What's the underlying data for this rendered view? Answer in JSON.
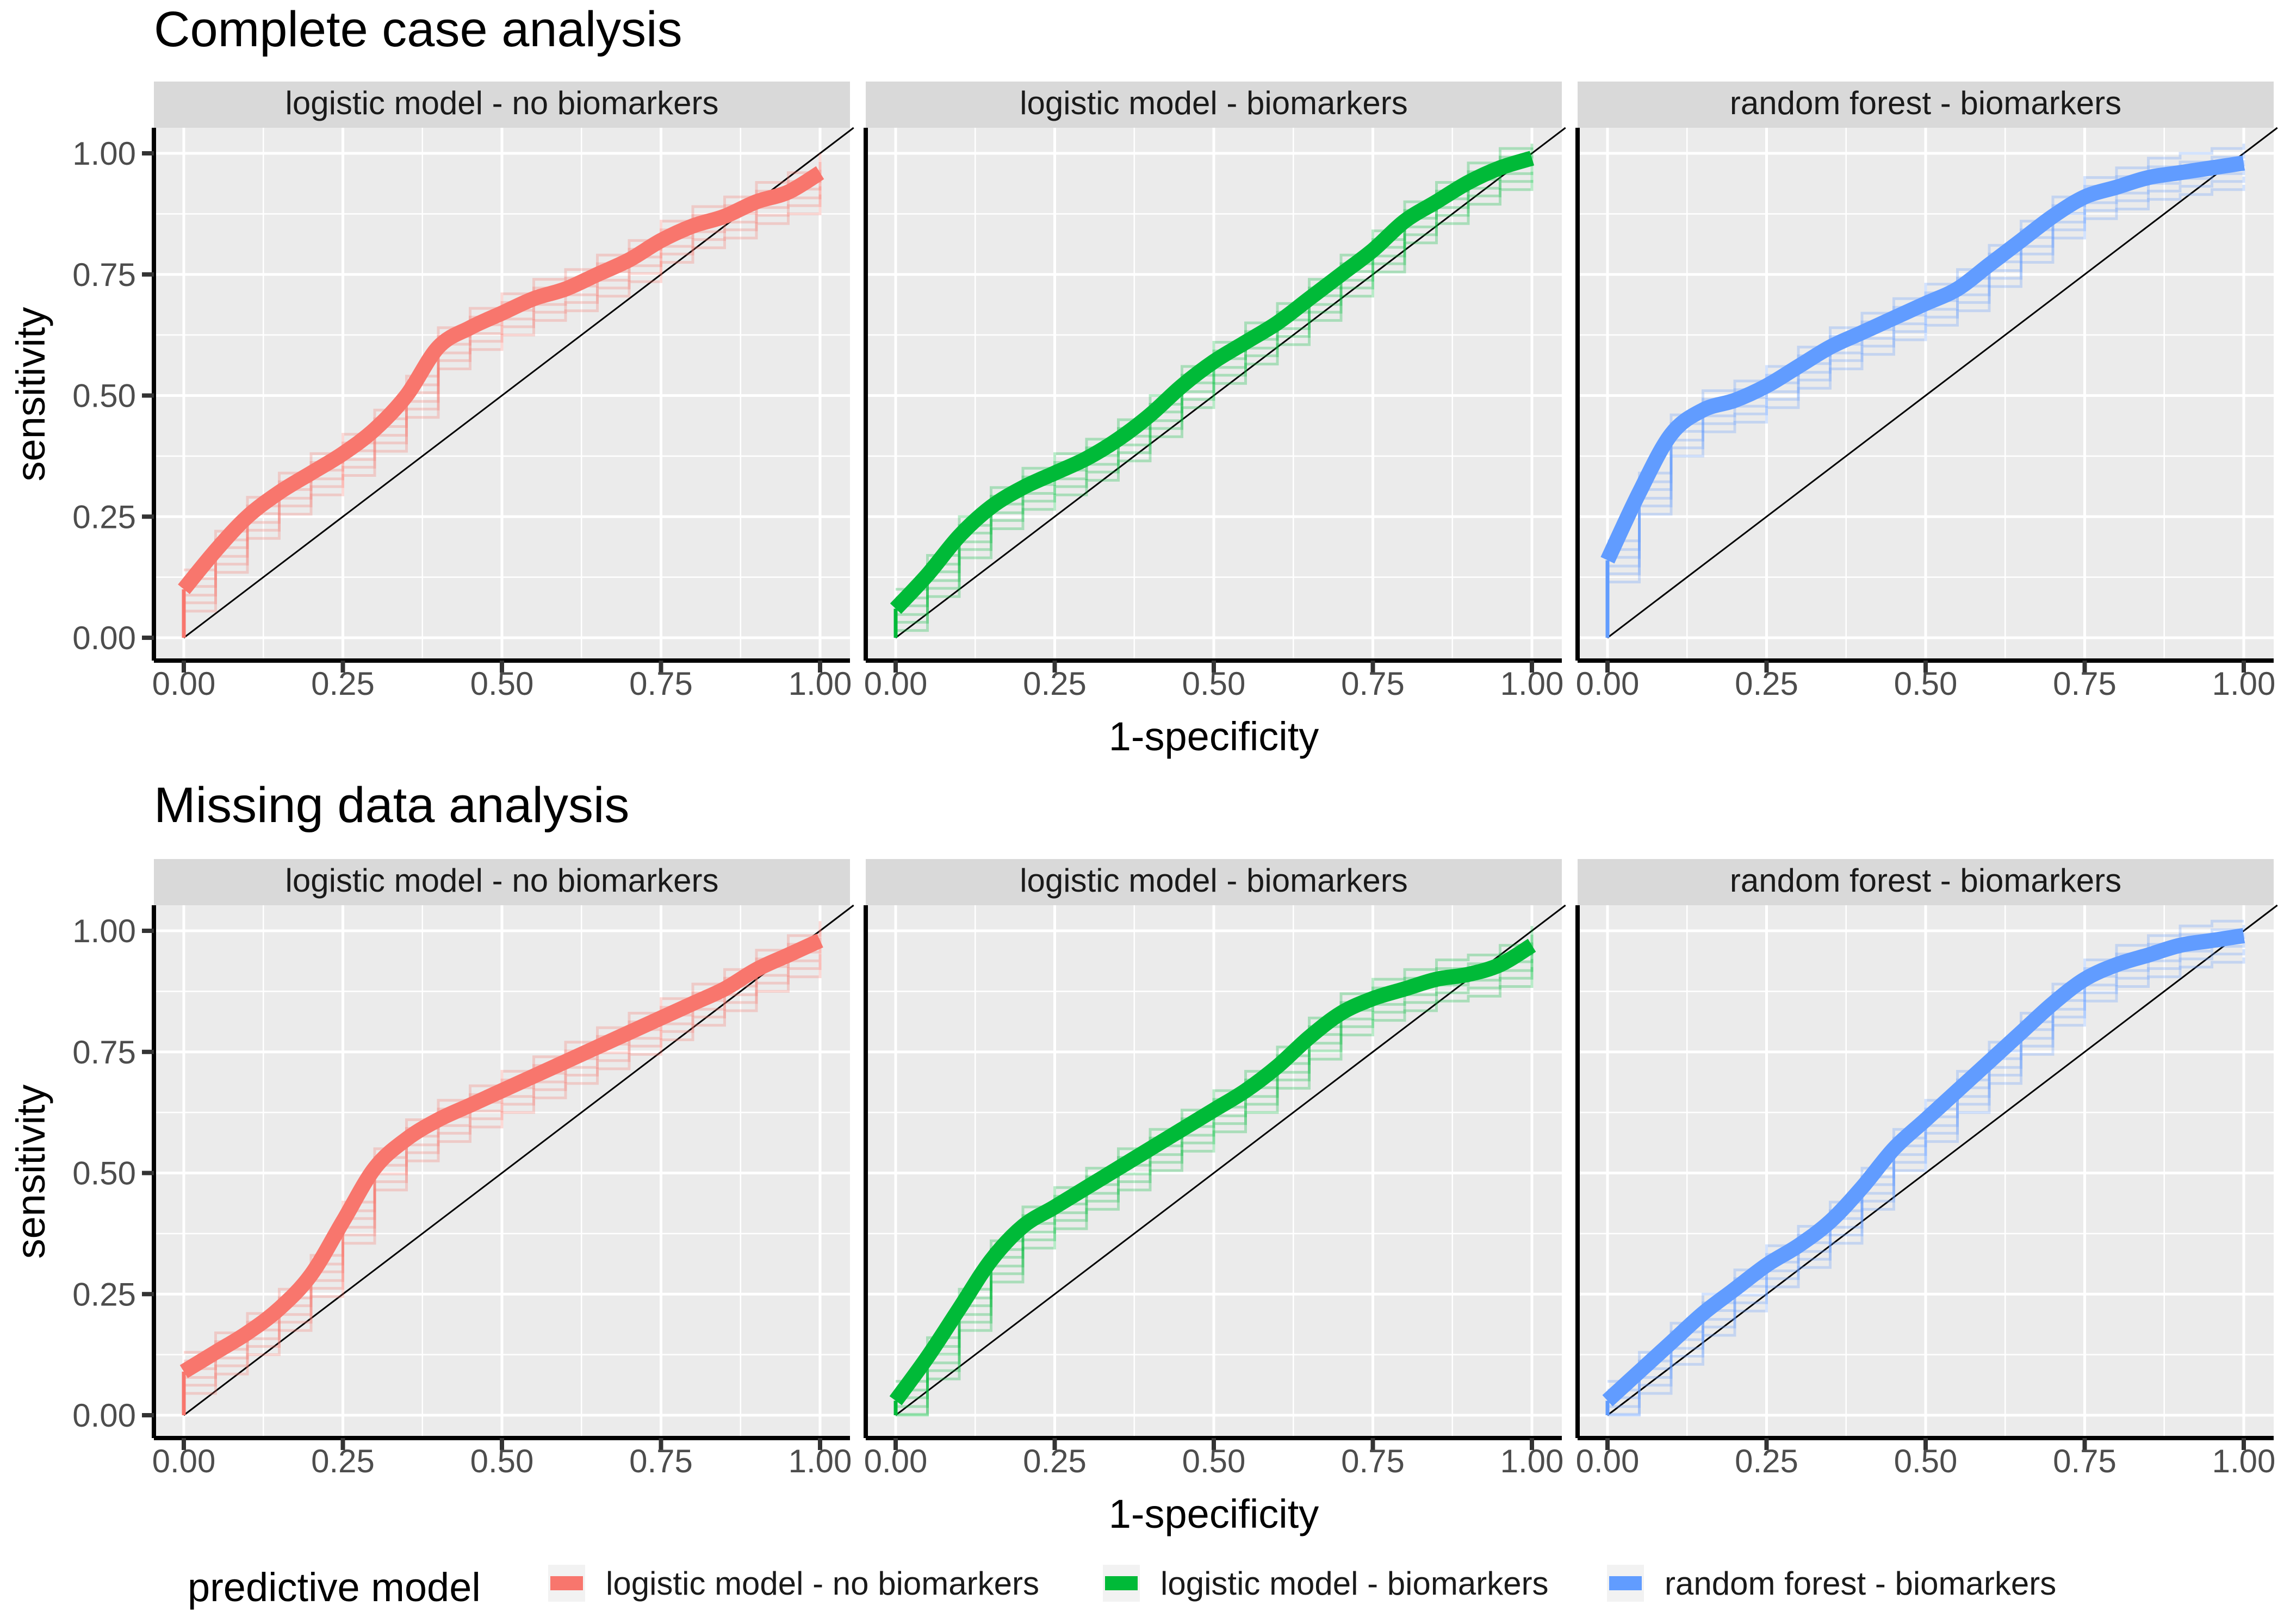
{
  "chart_data": [
    {
      "type": "line",
      "title": "Complete case analysis",
      "xlabel": "1-specificity",
      "ylabel": "sensitivity",
      "xlim": [
        0,
        1
      ],
      "ylim": [
        0,
        1
      ],
      "x_ticks": [
        "0.00",
        "0.25",
        "0.50",
        "0.75",
        "1.00"
      ],
      "y_ticks": [
        "0.00",
        "0.25",
        "0.50",
        "0.75",
        "1.00"
      ],
      "grid": true,
      "reference_line": "diagonal",
      "panels": [
        {
          "strip": "logistic model - no biomarkers",
          "color": "#F8766D",
          "series": [
            {
              "x": [
                0,
                0,
                0.05,
                0.1,
                0.15,
                0.2,
                0.25,
                0.3,
                0.35,
                0.4,
                0.45,
                0.5,
                0.55,
                0.6,
                0.65,
                0.7,
                0.75,
                0.8,
                0.85,
                0.9,
                0.95,
                1.0
              ],
              "y": [
                0,
                0.1,
                0.18,
                0.25,
                0.3,
                0.34,
                0.38,
                0.43,
                0.5,
                0.6,
                0.64,
                0.67,
                0.7,
                0.72,
                0.75,
                0.78,
                0.82,
                0.85,
                0.87,
                0.9,
                0.92,
                0.96
              ]
            }
          ]
        },
        {
          "strip": "logistic model - biomarkers",
          "color": "#00BA38",
          "series": [
            {
              "x": [
                0,
                0,
                0.05,
                0.1,
                0.15,
                0.2,
                0.25,
                0.3,
                0.35,
                0.4,
                0.45,
                0.5,
                0.55,
                0.6,
                0.65,
                0.7,
                0.75,
                0.8,
                0.85,
                0.9,
                0.95,
                1.0
              ],
              "y": [
                0,
                0.06,
                0.13,
                0.21,
                0.27,
                0.31,
                0.34,
                0.37,
                0.41,
                0.46,
                0.52,
                0.57,
                0.61,
                0.65,
                0.7,
                0.75,
                0.8,
                0.86,
                0.9,
                0.94,
                0.97,
                0.99
              ]
            }
          ]
        },
        {
          "strip": "random forest - biomarkers",
          "color": "#619CFF",
          "series": [
            {
              "x": [
                0,
                0,
                0.05,
                0.1,
                0.15,
                0.2,
                0.25,
                0.3,
                0.35,
                0.4,
                0.45,
                0.5,
                0.55,
                0.6,
                0.65,
                0.7,
                0.75,
                0.8,
                0.85,
                0.9,
                0.95,
                1.0
              ],
              "y": [
                0,
                0.16,
                0.3,
                0.42,
                0.47,
                0.49,
                0.52,
                0.56,
                0.6,
                0.63,
                0.66,
                0.69,
                0.72,
                0.77,
                0.82,
                0.87,
                0.91,
                0.93,
                0.95,
                0.96,
                0.97,
                0.98
              ]
            }
          ]
        }
      ]
    },
    {
      "type": "line",
      "title": "Missing data analysis",
      "xlabel": "1-specificity",
      "ylabel": "sensitivity",
      "xlim": [
        0,
        1
      ],
      "ylim": [
        0,
        1
      ],
      "x_ticks": [
        "0.00",
        "0.25",
        "0.50",
        "0.75",
        "1.00"
      ],
      "y_ticks": [
        "0.00",
        "0.25",
        "0.50",
        "0.75",
        "1.00"
      ],
      "grid": true,
      "reference_line": "diagonal",
      "panels": [
        {
          "strip": "logistic model - no biomarkers",
          "color": "#F8766D",
          "series": [
            {
              "x": [
                0,
                0,
                0.05,
                0.1,
                0.15,
                0.2,
                0.25,
                0.3,
                0.35,
                0.4,
                0.45,
                0.5,
                0.55,
                0.6,
                0.65,
                0.7,
                0.75,
                0.8,
                0.85,
                0.9,
                0.95,
                1.0
              ],
              "y": [
                0,
                0.09,
                0.13,
                0.17,
                0.22,
                0.29,
                0.4,
                0.51,
                0.57,
                0.61,
                0.64,
                0.67,
                0.7,
                0.73,
                0.76,
                0.79,
                0.82,
                0.85,
                0.88,
                0.92,
                0.95,
                0.98
              ]
            }
          ]
        },
        {
          "strip": "logistic model - biomarkers",
          "color": "#00BA38",
          "series": [
            {
              "x": [
                0,
                0,
                0.05,
                0.1,
                0.15,
                0.2,
                0.25,
                0.3,
                0.35,
                0.4,
                0.45,
                0.5,
                0.55,
                0.6,
                0.65,
                0.7,
                0.75,
                0.8,
                0.85,
                0.9,
                0.95,
                1.0
              ],
              "y": [
                0,
                0.03,
                0.12,
                0.22,
                0.32,
                0.39,
                0.43,
                0.47,
                0.51,
                0.55,
                0.59,
                0.63,
                0.67,
                0.72,
                0.78,
                0.83,
                0.86,
                0.88,
                0.9,
                0.91,
                0.93,
                0.97
              ]
            }
          ]
        },
        {
          "strip": "random forest - biomarkers",
          "color": "#619CFF",
          "series": [
            {
              "x": [
                0,
                0,
                0.05,
                0.1,
                0.15,
                0.2,
                0.25,
                0.3,
                0.35,
                0.4,
                0.45,
                0.5,
                0.55,
                0.6,
                0.65,
                0.7,
                0.75,
                0.8,
                0.85,
                0.9,
                0.95,
                1.0
              ],
              "y": [
                0,
                0.03,
                0.09,
                0.15,
                0.21,
                0.26,
                0.31,
                0.35,
                0.4,
                0.47,
                0.55,
                0.61,
                0.67,
                0.73,
                0.79,
                0.85,
                0.9,
                0.93,
                0.95,
                0.97,
                0.98,
                0.99
              ]
            }
          ]
        }
      ]
    }
  ],
  "legend": {
    "title": "predictive model",
    "items": [
      {
        "label": "logistic model - no biomarkers",
        "color": "#F8766D"
      },
      {
        "label": "logistic model - biomarkers",
        "color": "#00BA38"
      },
      {
        "label": "random forest - biomarkers",
        "color": "#619CFF"
      }
    ]
  }
}
